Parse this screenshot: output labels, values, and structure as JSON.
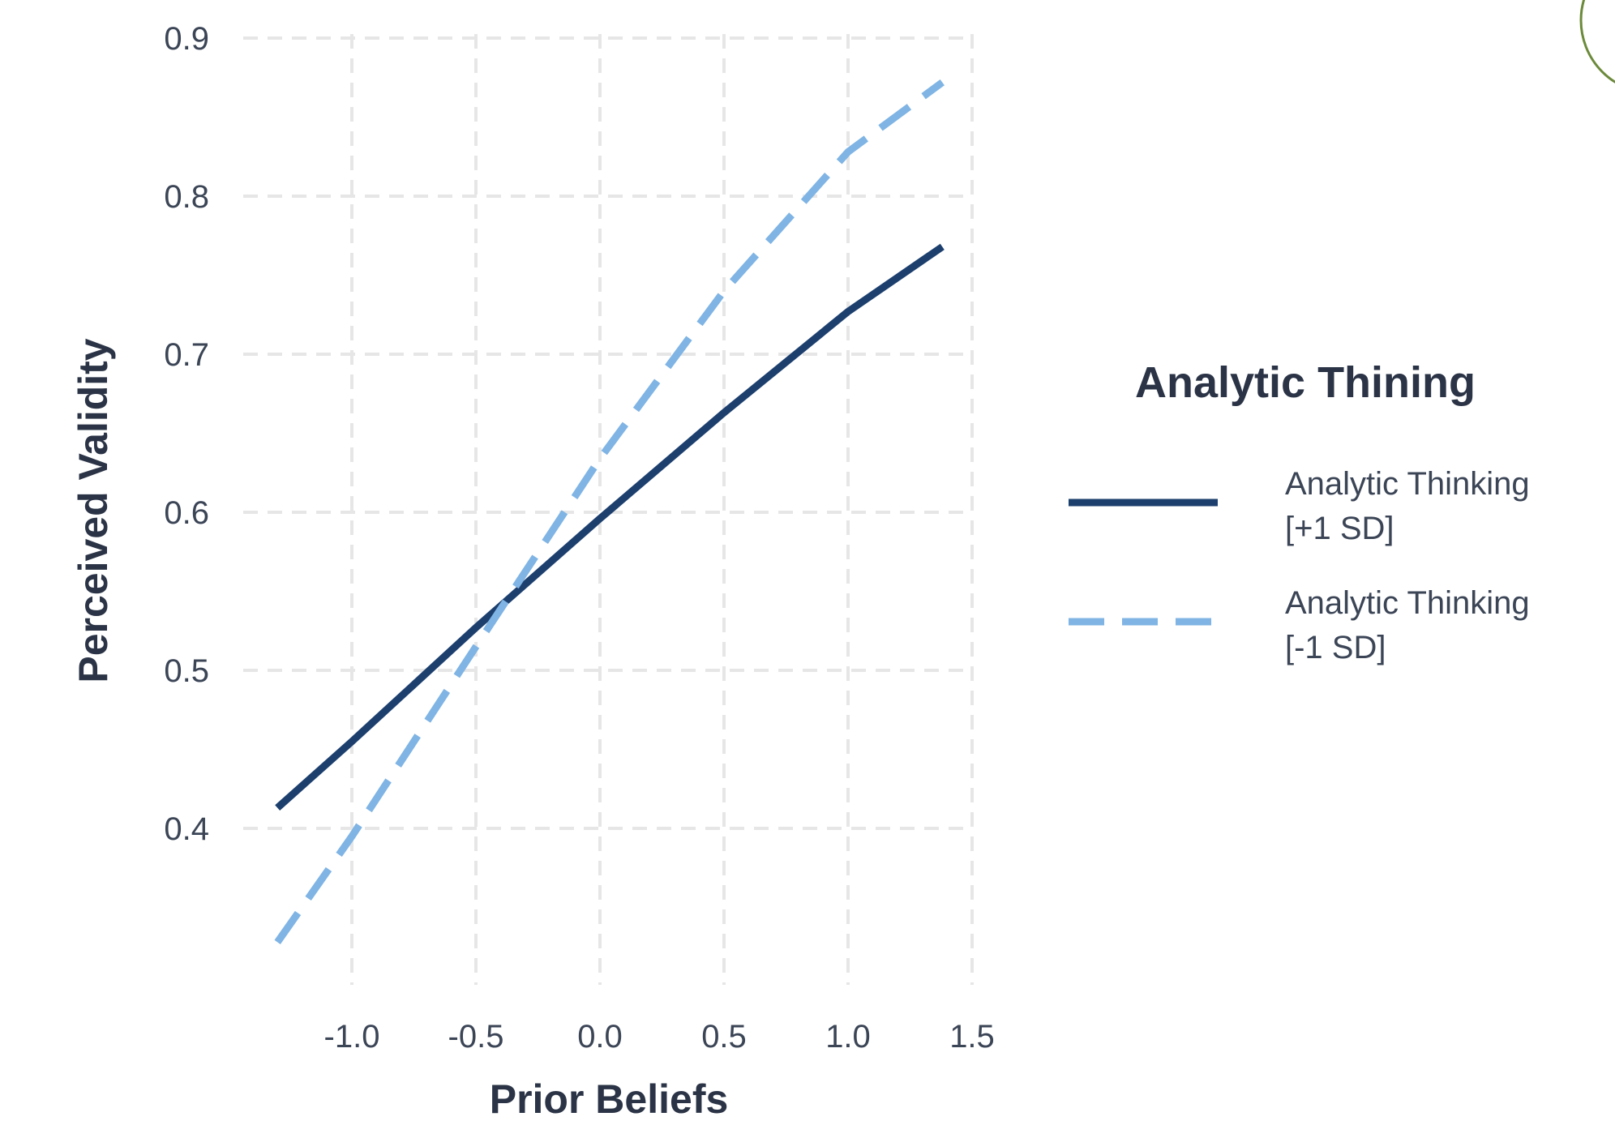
{
  "chart_data": {
    "type": "line",
    "xlabel": "Prior Beliefs",
    "ylabel": "Perceived Validity",
    "xlim": [
      -1.3,
      1.5
    ],
    "ylim": [
      0.3,
      0.9
    ],
    "xticks": [
      -1.0,
      -0.5,
      0.0,
      0.5,
      1.0,
      1.5
    ],
    "xtick_labels": [
      "-1.0",
      "-0.5",
      "0.0",
      "0.5",
      "1.0",
      "1.5"
    ],
    "yticks": [
      0.4,
      0.5,
      0.6,
      0.7,
      0.8,
      0.9
    ],
    "ytick_labels": [
      "0.4",
      "0.5",
      "0.6",
      "0.7",
      "0.8",
      "0.9"
    ],
    "grid": true,
    "legend": {
      "title": "Analytic Thining",
      "placement": "right"
    },
    "series": [
      {
        "name": "Analytic Thinking [+1 SD]",
        "name_lines": [
          "Analytic Thinking",
          "[+1 SD]"
        ],
        "style": "solid",
        "color": "#1c3f6e",
        "x": [
          -1.3,
          -1.0,
          -0.5,
          0.0,
          0.5,
          1.0,
          1.38
        ],
        "y": [
          0.413,
          0.455,
          0.527,
          0.596,
          0.663,
          0.727,
          0.768
        ]
      },
      {
        "name": "Analytic Thinking [-1 SD]",
        "name_lines": [
          "Analytic Thinking",
          "[-1 SD]"
        ],
        "style": "dashed",
        "color": "#7fb4e4",
        "x": [
          -1.3,
          -1.0,
          -0.5,
          0.0,
          0.5,
          1.0,
          1.38
        ],
        "y": [
          0.328,
          0.395,
          0.515,
          0.634,
          0.74,
          0.828,
          0.872
        ]
      }
    ]
  },
  "decor": {
    "corner_circle_color": "#6b8a3a"
  }
}
